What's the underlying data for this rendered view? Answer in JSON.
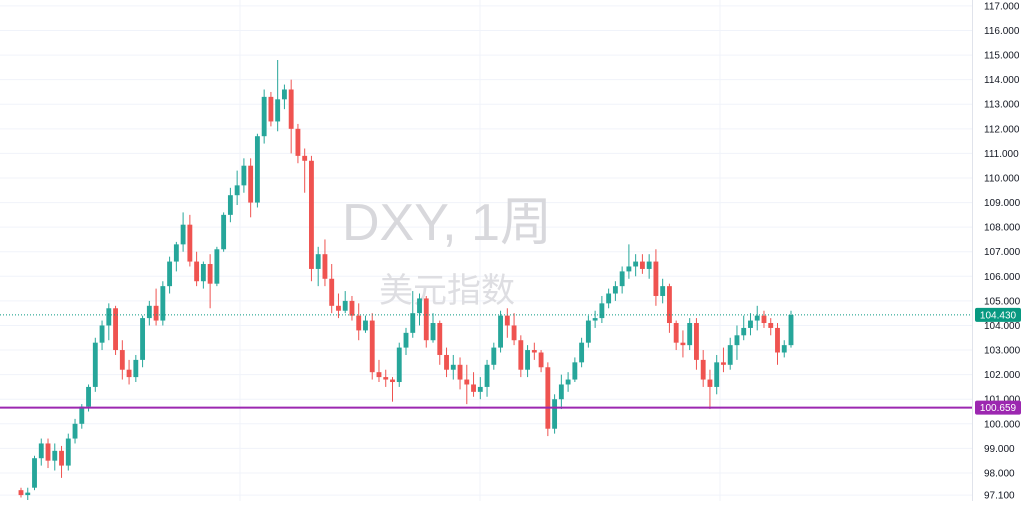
{
  "chart_data": {
    "type": "candlestick",
    "watermark": {
      "title": "DXY, 1周",
      "subtitle": "美元指数"
    },
    "y_axis": {
      "side": "right",
      "range": [
        96.9,
        117.2
      ],
      "ticks": [
        "97.100",
        "98.000",
        "99.000",
        "100.000",
        "101.000",
        "102.000",
        "103.000",
        "104.000",
        "105.000",
        "106.000",
        "107.000",
        "108.000",
        "109.000",
        "110.000",
        "111.000",
        "112.000",
        "113.000",
        "114.000",
        "115.000",
        "116.000",
        "117.000"
      ]
    },
    "grid": true,
    "colors": {
      "up": "#26a69a",
      "down": "#ef5350",
      "line": "#9c27b0",
      "price": "#089981",
      "grid": "#f0f3fa"
    },
    "current_price": {
      "value": 104.43,
      "label": "104.430"
    },
    "horizontal_line": {
      "value": 100.659,
      "label": "100.659"
    },
    "candles": [
      [
        97.3,
        97.4,
        97.0,
        97.1
      ],
      [
        97.1,
        97.4,
        96.9,
        97.2
      ],
      [
        97.4,
        98.7,
        97.3,
        98.6
      ],
      [
        98.6,
        99.4,
        98.3,
        99.2
      ],
      [
        99.2,
        99.4,
        98.2,
        98.5
      ],
      [
        98.5,
        99.2,
        98.1,
        98.9
      ],
      [
        98.9,
        99.1,
        97.8,
        98.3
      ],
      [
        98.3,
        99.6,
        98.1,
        99.4
      ],
      [
        99.4,
        100.2,
        99.2,
        100.0
      ],
      [
        100.0,
        100.8,
        99.8,
        100.7
      ],
      [
        100.7,
        101.6,
        100.5,
        101.5
      ],
      [
        101.5,
        103.5,
        101.3,
        103.3
      ],
      [
        103.3,
        104.2,
        103.0,
        104.0
      ],
      [
        104.0,
        104.9,
        103.4,
        104.7
      ],
      [
        104.7,
        104.8,
        102.8,
        103.0
      ],
      [
        103.0,
        103.4,
        101.8,
        102.2
      ],
      [
        102.2,
        102.6,
        101.6,
        101.9
      ],
      [
        101.9,
        102.8,
        101.7,
        102.6
      ],
      [
        102.6,
        104.4,
        102.3,
        104.3
      ],
      [
        104.3,
        105.0,
        104.0,
        104.8
      ],
      [
        104.8,
        105.5,
        104.0,
        104.2
      ],
      [
        104.2,
        105.8,
        104.0,
        105.6
      ],
      [
        105.6,
        106.8,
        105.3,
        106.6
      ],
      [
        106.6,
        107.4,
        106.2,
        107.3
      ],
      [
        107.3,
        108.6,
        107.0,
        108.1
      ],
      [
        108.1,
        108.5,
        106.4,
        106.6
      ],
      [
        106.6,
        107.0,
        105.6,
        105.8
      ],
      [
        105.8,
        106.6,
        105.5,
        106.5
      ],
      [
        106.5,
        106.9,
        104.7,
        105.7
      ],
      [
        105.7,
        107.2,
        105.6,
        107.1
      ],
      [
        107.1,
        108.6,
        107.0,
        108.5
      ],
      [
        108.5,
        109.6,
        108.2,
        109.3
      ],
      [
        109.3,
        110.3,
        108.9,
        109.7
      ],
      [
        109.7,
        110.8,
        109.4,
        110.5
      ],
      [
        110.5,
        110.8,
        108.4,
        109.0
      ],
      [
        109.0,
        111.8,
        108.8,
        111.7
      ],
      [
        111.7,
        113.6,
        111.4,
        113.3
      ],
      [
        113.3,
        113.5,
        112.1,
        112.3
      ],
      [
        112.3,
        114.8,
        111.9,
        113.2
      ],
      [
        113.2,
        113.8,
        112.8,
        113.6
      ],
      [
        113.6,
        114.0,
        111.0,
        112.0
      ],
      [
        112.0,
        112.2,
        110.6,
        110.9
      ],
      [
        110.9,
        111.2,
        109.4,
        110.7
      ],
      [
        110.7,
        110.9,
        105.8,
        106.3
      ],
      [
        106.3,
        107.2,
        105.6,
        106.9
      ],
      [
        106.9,
        107.5,
        105.6,
        105.9
      ],
      [
        105.9,
        106.5,
        104.5,
        104.8
      ],
      [
        104.8,
        105.3,
        104.3,
        104.6
      ],
      [
        104.6,
        105.4,
        104.5,
        105.0
      ],
      [
        105.0,
        105.2,
        104.2,
        104.4
      ],
      [
        104.4,
        104.9,
        103.4,
        103.8
      ],
      [
        103.8,
        104.4,
        103.7,
        104.2
      ],
      [
        104.2,
        104.5,
        101.8,
        102.1
      ],
      [
        102.1,
        102.6,
        101.7,
        101.9
      ],
      [
        101.9,
        102.2,
        101.5,
        101.8
      ],
      [
        101.8,
        101.9,
        100.9,
        101.7
      ],
      [
        101.7,
        103.3,
        101.5,
        103.1
      ],
      [
        103.1,
        103.9,
        102.8,
        103.7
      ],
      [
        103.7,
        105.4,
        103.5,
        104.5
      ],
      [
        104.5,
        105.3,
        104.0,
        105.1
      ],
      [
        105.1,
        105.2,
        103.1,
        103.4
      ],
      [
        103.4,
        104.5,
        103.3,
        104.1
      ],
      [
        104.1,
        104.2,
        102.4,
        102.8
      ],
      [
        102.8,
        103.1,
        101.9,
        102.2
      ],
      [
        102.2,
        102.8,
        101.8,
        102.4
      ],
      [
        102.4,
        102.7,
        101.4,
        101.8
      ],
      [
        101.8,
        102.4,
        100.8,
        101.6
      ],
      [
        101.6,
        102.1,
        101.1,
        101.3
      ],
      [
        101.3,
        101.9,
        101.0,
        101.5
      ],
      [
        101.5,
        102.6,
        101.1,
        102.4
      ],
      [
        102.4,
        103.3,
        102.2,
        103.1
      ],
      [
        103.1,
        104.6,
        102.9,
        104.4
      ],
      [
        104.4,
        104.7,
        103.5,
        104.0
      ],
      [
        104.0,
        104.5,
        103.2,
        103.4
      ],
      [
        103.4,
        103.6,
        101.9,
        102.2
      ],
      [
        102.2,
        103.2,
        101.9,
        103.0
      ],
      [
        103.0,
        103.3,
        102.6,
        102.9
      ],
      [
        102.9,
        103.0,
        102.1,
        102.3
      ],
      [
        102.3,
        102.5,
        99.5,
        99.8
      ],
      [
        99.8,
        101.2,
        99.6,
        101.0
      ],
      [
        101.0,
        102.0,
        100.6,
        101.6
      ],
      [
        101.6,
        102.1,
        101.3,
        101.8
      ],
      [
        101.8,
        102.7,
        101.7,
        102.5
      ],
      [
        102.5,
        103.5,
        102.3,
        103.3
      ],
      [
        103.3,
        104.4,
        103.1,
        104.2
      ],
      [
        104.2,
        104.6,
        103.9,
        104.3
      ],
      [
        104.3,
        105.2,
        104.1,
        104.9
      ],
      [
        104.9,
        105.5,
        104.7,
        105.3
      ],
      [
        105.3,
        105.8,
        105.0,
        105.6
      ],
      [
        105.6,
        106.4,
        105.3,
        106.2
      ],
      [
        106.2,
        107.3,
        105.9,
        106.4
      ],
      [
        106.4,
        106.9,
        106.0,
        106.6
      ],
      [
        106.6,
        106.9,
        106.1,
        106.3
      ],
      [
        106.3,
        106.9,
        105.9,
        106.6
      ],
      [
        106.6,
        107.1,
        104.8,
        105.2
      ],
      [
        105.2,
        105.9,
        104.9,
        105.6
      ],
      [
        105.6,
        105.7,
        103.7,
        104.1
      ],
      [
        104.1,
        104.2,
        103.0,
        103.3
      ],
      [
        103.3,
        103.8,
        102.7,
        103.2
      ],
      [
        103.2,
        104.3,
        103.0,
        104.1
      ],
      [
        104.1,
        104.3,
        102.2,
        102.6
      ],
      [
        102.6,
        103.0,
        101.5,
        101.8
      ],
      [
        101.8,
        102.2,
        100.6,
        101.5
      ],
      [
        101.5,
        102.8,
        101.2,
        102.5
      ],
      [
        102.5,
        103.1,
        102.1,
        102.4
      ],
      [
        102.4,
        103.5,
        102.2,
        103.2
      ],
      [
        103.2,
        104.0,
        102.6,
        103.6
      ],
      [
        103.6,
        104.4,
        103.4,
        103.9
      ],
      [
        103.9,
        104.5,
        103.6,
        104.2
      ],
      [
        104.2,
        104.8,
        103.8,
        104.4
      ],
      [
        104.4,
        104.6,
        103.9,
        104.1
      ],
      [
        104.1,
        104.3,
        103.6,
        103.9
      ],
      [
        103.9,
        104.1,
        102.4,
        102.9
      ],
      [
        102.9,
        103.4,
        102.7,
        103.2
      ],
      [
        103.2,
        104.6,
        103.1,
        104.43
      ]
    ]
  }
}
